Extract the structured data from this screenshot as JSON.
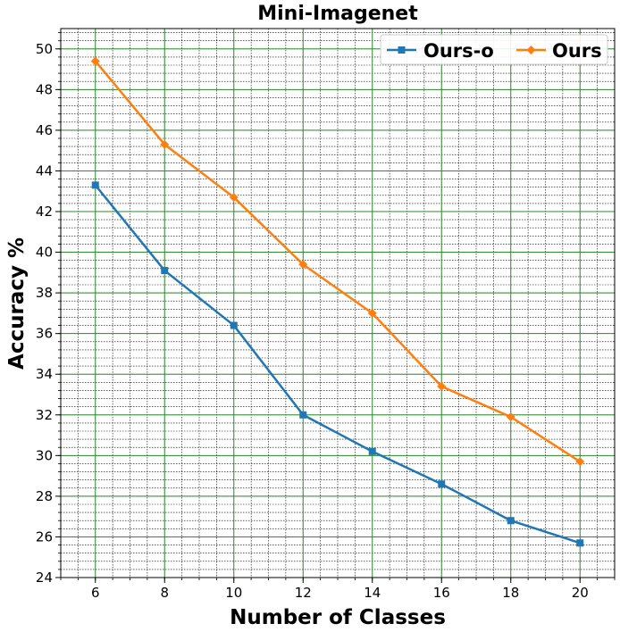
{
  "chart_data": {
    "type": "line",
    "title": "Mini-Imagenet",
    "xlabel": "Number of Classes",
    "ylabel": "Accuracy %",
    "x": [
      6,
      8,
      10,
      12,
      14,
      16,
      18,
      20
    ],
    "xlim": [
      5,
      21
    ],
    "ylim": [
      24,
      51
    ],
    "xticks": [
      6,
      8,
      10,
      12,
      14,
      16,
      18,
      20
    ],
    "yticks": [
      24,
      26,
      28,
      30,
      32,
      34,
      36,
      38,
      40,
      42,
      44,
      46,
      48,
      50
    ],
    "grid": true,
    "minor_grid": true,
    "legend_position": "top-right",
    "series": [
      {
        "name": "Ours-o",
        "color": "#1f77b4",
        "marker": "square",
        "values": [
          43.3,
          39.1,
          36.4,
          32.0,
          30.2,
          28.6,
          26.8,
          25.7
        ]
      },
      {
        "name": "Ours",
        "color": "#ff7f0e",
        "marker": "diamond",
        "values": [
          49.4,
          45.3,
          42.7,
          39.4,
          37.0,
          33.4,
          31.9,
          29.7
        ]
      }
    ],
    "major_grid_color": "#2e8b2e",
    "minor_grid_color": "#000000"
  }
}
